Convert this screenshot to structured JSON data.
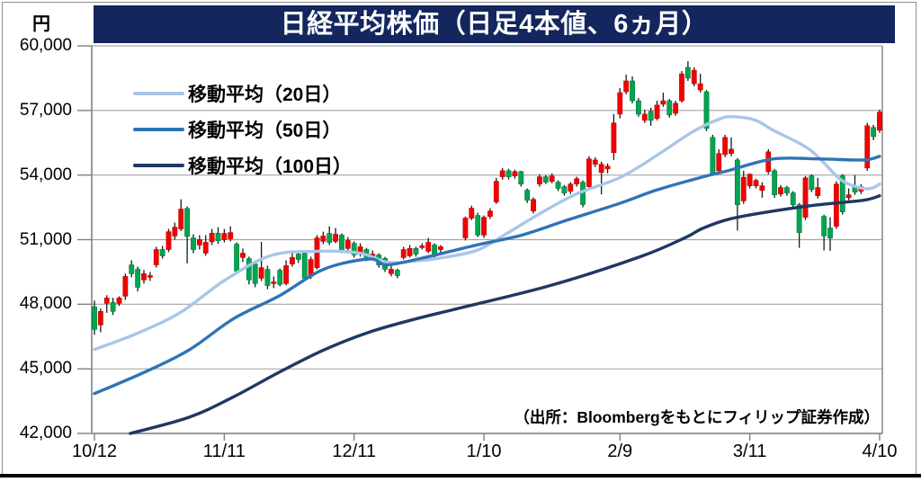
{
  "header": {
    "title": "日経平均株価（日足4本値、6ヵ月）"
  },
  "y_axis": {
    "unit": "円",
    "labels": [
      "60,000",
      "57,000",
      "54,000",
      "51,000",
      "48,000",
      "45,000",
      "42,000"
    ],
    "min": 42000,
    "max": 60000,
    "step": 3000
  },
  "x_axis": {
    "tick_labels": [
      "10/12",
      "11/11",
      "12/11",
      "1/10",
      "2/9",
      "3/11",
      "4/10"
    ],
    "tick_indices": [
      0,
      21,
      42,
      63,
      85,
      106,
      127
    ]
  },
  "legend": [
    {
      "label": "移動平均（20日）",
      "color": "#A9C6E8"
    },
    {
      "label": "移動平均（50日）",
      "color": "#2E74B5"
    },
    {
      "label": "移動平均（100日）",
      "color": "#1F3864"
    }
  ],
  "source_note": "（出所：Bloombergをもとにフィリップ証券作成）",
  "colors": {
    "banner": "#13265E",
    "up_candle": "#F40000",
    "up_candle_edge": "#C00000",
    "down_candle": "#00A650",
    "down_candle_edge": "#00753A",
    "wick": "#1a1a1a",
    "gridline": "#A6A6A6",
    "axis": "#808080",
    "frame": "#909090",
    "ma20": "#A9C6E8",
    "ma50": "#2E74B5",
    "ma100": "#1F3864"
  },
  "chart_data": {
    "type": "candlestick",
    "title": "日経平均株価（日足4本値、6ヵ月）",
    "unit": "JPY",
    "ylim": [
      42000,
      60000
    ],
    "grid": true,
    "legend_position": "upper-left",
    "n_slots": 128,
    "x_tick_labels": [
      "10/12",
      "11/11",
      "12/11",
      "1/10",
      "2/9",
      "3/11",
      "4/10"
    ],
    "x_tick_indices": [
      0,
      21,
      42,
      63,
      85,
      106,
      127
    ],
    "candles_ohlc": [
      [
        47875,
        48170,
        46580,
        46830
      ],
      [
        47040,
        47800,
        46700,
        47670
      ],
      [
        48040,
        48420,
        47600,
        48290
      ],
      [
        48080,
        48300,
        47500,
        47670
      ],
      [
        48040,
        48370,
        47920,
        48290
      ],
      [
        48375,
        49420,
        48200,
        49290
      ],
      [
        49830,
        50040,
        49250,
        49420
      ],
      [
        49625,
        49750,
        48600,
        48790
      ],
      [
        49130,
        49590,
        48960,
        49420
      ],
      [
        49250,
        49500,
        49080,
        49330
      ],
      [
        49830,
        50670,
        49700,
        50540
      ],
      [
        50540,
        50710,
        50120,
        50250
      ],
      [
        50540,
        51500,
        50420,
        51370
      ],
      [
        51170,
        51790,
        51000,
        51580
      ],
      [
        51500,
        52875,
        51400,
        52420
      ],
      [
        52450,
        52540,
        49900,
        51150
      ],
      [
        51080,
        51250,
        50370,
        50540
      ],
      [
        50750,
        51210,
        50540,
        51000
      ],
      [
        50375,
        51210,
        50250,
        50875
      ],
      [
        50900,
        51500,
        50750,
        51300
      ],
      [
        51300,
        51580,
        50800,
        50950
      ],
      [
        51000,
        51500,
        50870,
        51290
      ],
      [
        51040,
        51620,
        50920,
        51330
      ],
      [
        50790,
        50870,
        49420,
        49540
      ],
      [
        50170,
        50590,
        49960,
        50370
      ],
      [
        50120,
        50210,
        48920,
        49130
      ],
      [
        49870,
        49950,
        48790,
        48960
      ],
      [
        49210,
        50900,
        49080,
        49700
      ],
      [
        49620,
        49790,
        48700,
        48870
      ],
      [
        48960,
        49290,
        48750,
        49040
      ],
      [
        49580,
        49660,
        48830,
        48920
      ],
      [
        48960,
        50040,
        48870,
        49790
      ],
      [
        49870,
        50370,
        49750,
        50170
      ],
      [
        50330,
        50460,
        49920,
        50080
      ],
      [
        50375,
        50460,
        49080,
        49210
      ],
      [
        49290,
        50210,
        49170,
        50080
      ],
      [
        49700,
        51210,
        49620,
        51080
      ],
      [
        50920,
        51370,
        50790,
        51170
      ],
      [
        51290,
        51620,
        50750,
        50870
      ],
      [
        50920,
        51540,
        50830,
        51250
      ],
      [
        51210,
        51290,
        50370,
        50500
      ],
      [
        50590,
        51120,
        50460,
        50960
      ],
      [
        50830,
        50920,
        50170,
        50290
      ],
      [
        50330,
        50830,
        50210,
        50670
      ],
      [
        50540,
        50620,
        50000,
        50120
      ],
      [
        50250,
        50500,
        50150,
        50330
      ],
      [
        50290,
        50370,
        49700,
        49830
      ],
      [
        50125,
        50200,
        49500,
        49625
      ],
      [
        49420,
        49790,
        49290,
        49625
      ],
      [
        49580,
        49660,
        49210,
        49330
      ],
      [
        50170,
        50670,
        50080,
        50540
      ],
      [
        50250,
        50750,
        50170,
        50590
      ],
      [
        50590,
        50670,
        50210,
        50330
      ],
      [
        50630,
        50830,
        50540,
        50710
      ],
      [
        50460,
        51080,
        50370,
        50875
      ],
      [
        50750,
        50830,
        50120,
        50250
      ],
      [
        50540,
        50750,
        50290,
        50670
      ],
      null,
      null,
      null,
      [
        51080,
        52080,
        50960,
        52000
      ],
      [
        52000,
        52580,
        51910,
        52460
      ],
      [
        52125,
        52250,
        51120,
        51210
      ],
      [
        51210,
        52125,
        51080,
        52040
      ],
      [
        52080,
        52460,
        51960,
        52330
      ],
      [
        52750,
        53870,
        52660,
        53710
      ],
      [
        53920,
        54330,
        53790,
        54200
      ],
      [
        54200,
        54290,
        53790,
        53920
      ],
      [
        53960,
        54250,
        53830,
        54160
      ],
      [
        54160,
        54200,
        53460,
        53580
      ],
      [
        53300,
        53380,
        52700,
        52830
      ],
      [
        52330,
        52960,
        52210,
        52870
      ],
      [
        53580,
        54040,
        53460,
        53920
      ],
      [
        53920,
        54000,
        53580,
        53670
      ],
      [
        53710,
        54080,
        53620,
        53960
      ],
      [
        53670,
        53750,
        53250,
        53380
      ],
      [
        53460,
        53540,
        53040,
        53170
      ],
      [
        53250,
        53670,
        53120,
        53580
      ],
      [
        53580,
        53920,
        53460,
        53830
      ],
      [
        53670,
        53750,
        52500,
        52630
      ],
      [
        53460,
        54870,
        53380,
        54750
      ],
      [
        54500,
        54830,
        54370,
        54700
      ],
      [
        54120,
        54620,
        53100,
        54500
      ],
      [
        54290,
        54540,
        54080,
        54410
      ],
      [
        55040,
        56830,
        54700,
        56420
      ],
      [
        56830,
        58040,
        56630,
        57830
      ],
      [
        57870,
        58660,
        57750,
        58370
      ],
      [
        58370,
        58580,
        57330,
        57450
      ],
      [
        57450,
        57580,
        56710,
        56830
      ],
      [
        56540,
        57040,
        56420,
        56830
      ],
      [
        56960,
        57120,
        56290,
        56540
      ],
      [
        56630,
        57450,
        56540,
        57250
      ],
      [
        57290,
        57830,
        57170,
        57450
      ],
      [
        57450,
        57540,
        56670,
        56790
      ],
      [
        56870,
        57450,
        56750,
        57330
      ],
      [
        57450,
        58830,
        57370,
        58700
      ],
      [
        59000,
        59290,
        58370,
        58500
      ],
      [
        58240,
        59000,
        58120,
        58870
      ],
      [
        57950,
        58700,
        57830,
        58240
      ],
      [
        57870,
        57950,
        56040,
        56170
      ],
      [
        55750,
        55870,
        53960,
        54080
      ],
      [
        54200,
        55200,
        54040,
        55000
      ],
      [
        54950,
        55870,
        54830,
        55750
      ],
      [
        55000,
        55750,
        54870,
        55200
      ],
      [
        54700,
        54790,
        51420,
        52620
      ],
      [
        52800,
        54200,
        52660,
        53900
      ],
      [
        53500,
        54080,
        53380,
        54040
      ],
      [
        53500,
        53830,
        53380,
        53750
      ],
      [
        53290,
        53670,
        52950,
        53500
      ],
      [
        54160,
        55200,
        54040,
        55080
      ],
      [
        54200,
        54290,
        52950,
        53080
      ],
      [
        53120,
        53540,
        53000,
        53420
      ],
      [
        53420,
        53500,
        53040,
        53170
      ],
      [
        53170,
        53250,
        52500,
        52620
      ],
      [
        52620,
        52700,
        50620,
        51330
      ],
      [
        52040,
        53960,
        51910,
        53870
      ],
      [
        53960,
        54040,
        53210,
        53330
      ],
      [
        53040,
        53870,
        52910,
        53420
      ],
      [
        52080,
        52160,
        50500,
        51170
      ],
      [
        51540,
        52040,
        50480,
        51080
      ],
      [
        51620,
        53710,
        51500,
        53580
      ],
      [
        53960,
        54040,
        52170,
        52290
      ],
      [
        52950,
        53380,
        52830,
        53080
      ],
      [
        53500,
        54000,
        53080,
        53210
      ],
      [
        53250,
        53580,
        53120,
        53460
      ],
      [
        54330,
        56420,
        54200,
        56290
      ],
      [
        56210,
        56330,
        55620,
        55790
      ],
      [
        56080,
        57040,
        55960,
        56920
      ]
    ],
    "moving_averages": [
      {
        "name": "移動平均（20日）",
        "period": 20,
        "color": "#A9C6E8",
        "anchors": [
          [
            0,
            45900
          ],
          [
            6.5,
            46600
          ],
          [
            13.8,
            47600
          ],
          [
            21,
            49100
          ],
          [
            28.4,
            50250
          ],
          [
            35.6,
            50460
          ],
          [
            42.9,
            50375
          ],
          [
            47.3,
            49950
          ],
          [
            51.6,
            50000
          ],
          [
            56,
            50150
          ],
          [
            61.8,
            50500
          ],
          [
            66.2,
            51200
          ],
          [
            72,
            52200
          ],
          [
            77.8,
            53100
          ],
          [
            85.1,
            53900
          ],
          [
            90.9,
            54900
          ],
          [
            96.7,
            56000
          ],
          [
            101.1,
            56600
          ],
          [
            103.3,
            56710
          ],
          [
            106.9,
            56550
          ],
          [
            109.8,
            56080
          ],
          [
            114.6,
            55380
          ],
          [
            117.1,
            54830
          ],
          [
            120.7,
            53790
          ],
          [
            123.7,
            53420
          ],
          [
            125.6,
            53380
          ],
          [
            127,
            53580
          ]
        ]
      },
      {
        "name": "移動平均（50日）",
        "period": 50,
        "color": "#2E74B5",
        "anchors": [
          [
            0,
            43850
          ],
          [
            8,
            44830
          ],
          [
            15.3,
            45875
          ],
          [
            22.5,
            47330
          ],
          [
            29.8,
            48375
          ],
          [
            37.1,
            49625
          ],
          [
            44.4,
            50100
          ],
          [
            47.3,
            49830
          ],
          [
            53.1,
            50150
          ],
          [
            61.8,
            50750
          ],
          [
            69.1,
            51210
          ],
          [
            76.4,
            51900
          ],
          [
            85.1,
            52700
          ],
          [
            90.9,
            53300
          ],
          [
            98.2,
            53900
          ],
          [
            102.6,
            54210
          ],
          [
            109.8,
            54750
          ],
          [
            117.1,
            54750
          ],
          [
            124.4,
            54700
          ],
          [
            127,
            54870
          ]
        ]
      },
      {
        "name": "移動平均（100日）",
        "period": 100,
        "color": "#1F3864",
        "anchors": [
          [
            5.8,
            42000
          ],
          [
            15.3,
            42750
          ],
          [
            22.5,
            43700
          ],
          [
            29.8,
            44830
          ],
          [
            37.1,
            45875
          ],
          [
            44.4,
            46700
          ],
          [
            51.6,
            47290
          ],
          [
            59.2,
            47830
          ],
          [
            73.8,
            48875
          ],
          [
            88.3,
            50210
          ],
          [
            95.6,
            51100
          ],
          [
            98.2,
            51500
          ],
          [
            102.6,
            51950
          ],
          [
            109.8,
            52330
          ],
          [
            117.1,
            52620
          ],
          [
            124.4,
            52830
          ],
          [
            127,
            53040
          ]
        ]
      }
    ]
  }
}
